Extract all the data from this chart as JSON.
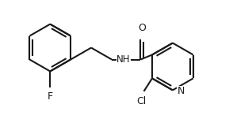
{
  "bg_color": "#ffffff",
  "bond_color": "#1a1a1a",
  "dbl_color": "#1a1a1a",
  "label_color": "#1a1a1a",
  "lw": 1.5,
  "fs": 8.5,
  "figsize": [
    3.18,
    1.51
  ],
  "dpi": 100,
  "xlim": [
    -0.5,
    9.5
  ],
  "ylim": [
    -0.8,
    4.2
  ]
}
